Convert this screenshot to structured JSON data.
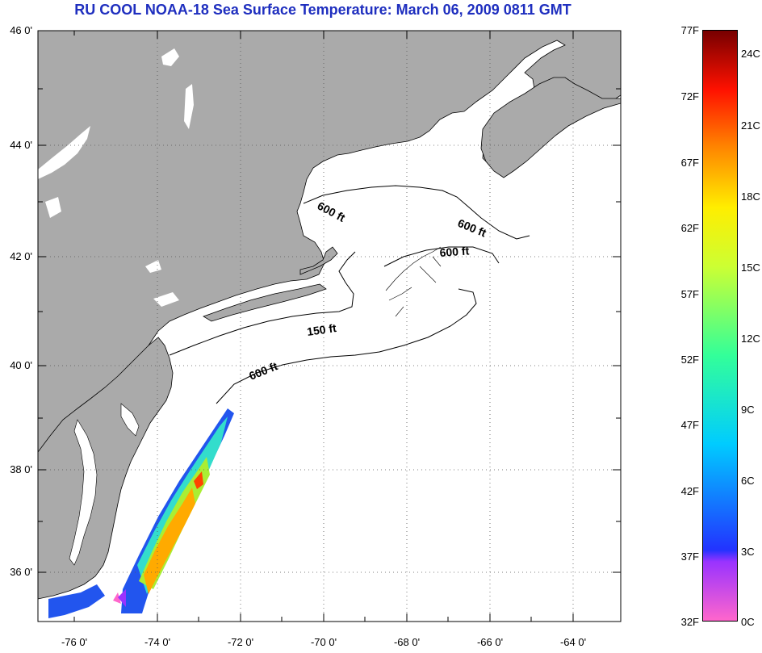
{
  "title": "RU COOL  NOAA-18  Sea Surface Temperature:  March 06, 2009 0811 GMT",
  "map": {
    "lat_labels": [
      "46 0'",
      "44 0'",
      "42 0'",
      "40 0'",
      "38 0'",
      "36 0'"
    ],
    "lon_labels": [
      "-76 0'",
      "-74 0'",
      "-72 0'",
      "-70 0'",
      "-68 0'",
      "-66 0'",
      "-64 0'"
    ],
    "lat_range": [
      35.0,
      46.0
    ],
    "lon_range": [
      -77.0,
      -63.0
    ],
    "grid": "dotted",
    "depth_contours": [
      "600 ft",
      "600 ft",
      "600 ft",
      "150 ft",
      "600 ft"
    ],
    "colors": {
      "land": "#aaaaaa",
      "ocean": "#ffffff",
      "title": "#1f2fbf"
    }
  },
  "colorbar": {
    "fahrenheit": [
      "77F",
      "72F",
      "67F",
      "62F",
      "57F",
      "52F",
      "47F",
      "42F",
      "37F",
      "32F"
    ],
    "celsius": [
      "24C",
      "21C",
      "18C",
      "15C",
      "12C",
      "9C",
      "6C",
      "3C",
      "0C"
    ],
    "range_f": [
      32,
      77
    ],
    "range_c": [
      0,
      25
    ]
  }
}
